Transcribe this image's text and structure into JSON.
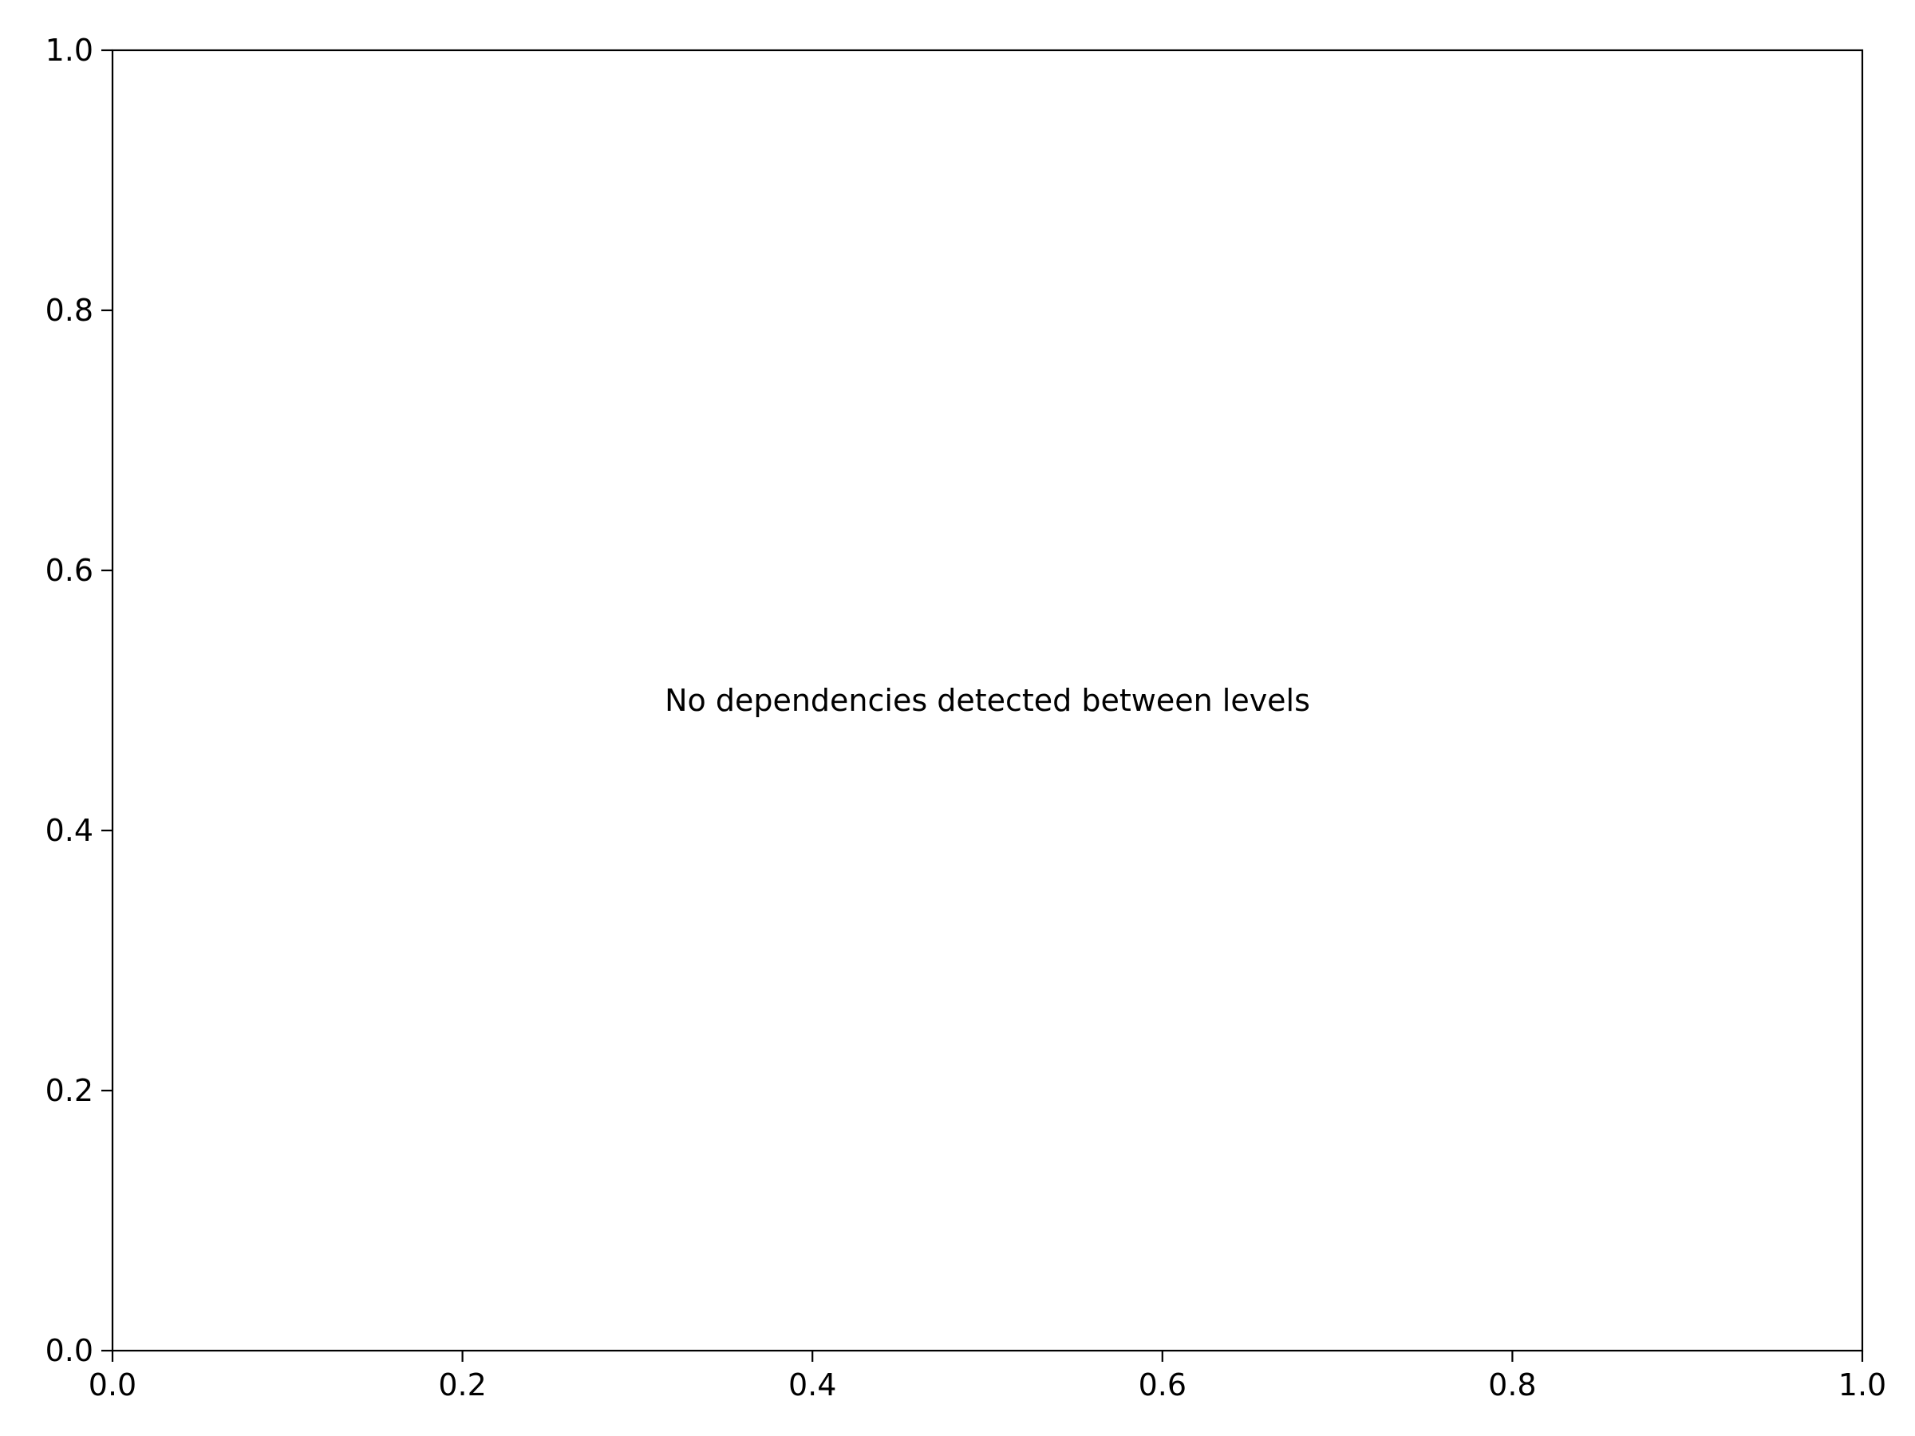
{
  "chart_data": {
    "type": "scatter",
    "series": [],
    "xlim": [
      0.0,
      1.0
    ],
    "ylim": [
      0.0,
      1.0
    ],
    "x_ticks": [
      "0.0",
      "0.2",
      "0.4",
      "0.6",
      "0.8",
      "1.0"
    ],
    "y_ticks": [
      "0.0",
      "0.2",
      "0.4",
      "0.6",
      "0.8",
      "1.0"
    ],
    "grid": false,
    "annotations": [
      {
        "text": "No dependencies detected between levels",
        "x": 0.5,
        "y": 0.5
      }
    ]
  }
}
